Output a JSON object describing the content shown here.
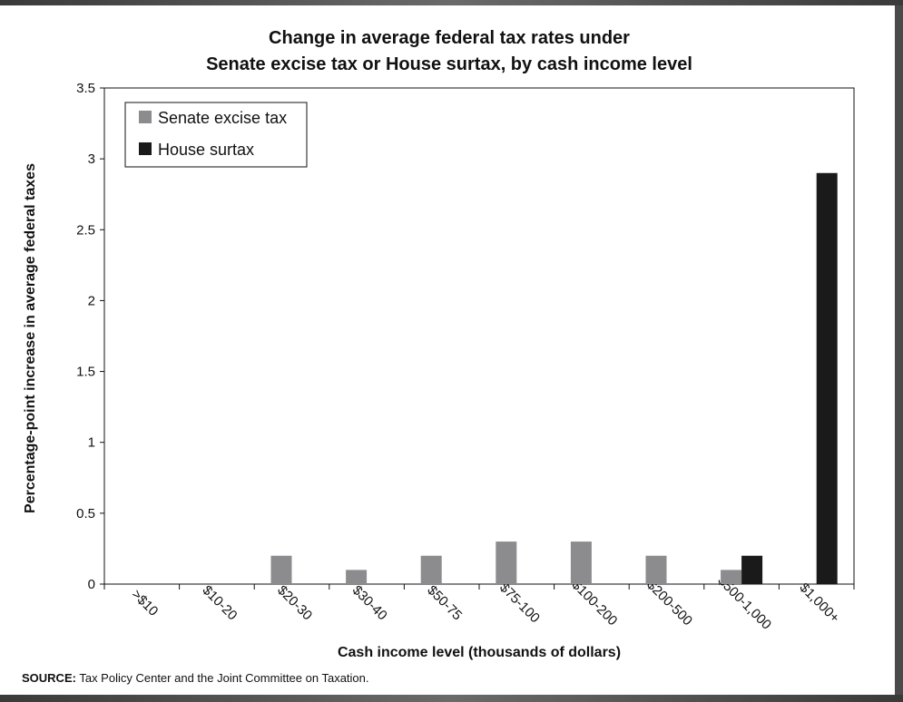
{
  "chart_data": {
    "type": "bar",
    "title": [
      "Change in average federal tax rates under",
      "Senate excise tax or House surtax, by cash income level"
    ],
    "xlabel": "Cash income level (thousands of dollars)",
    "ylabel": "Percentage-point increase in average federal taxes",
    "categories": [
      ">$10",
      "$10-20",
      "$20-30",
      "$30-40",
      "$50-75",
      "$75-100",
      "$100-200",
      "$200-500",
      "$500-1,000",
      "$1,000+"
    ],
    "ylim": [
      0,
      3.5
    ],
    "yticks": [
      "0",
      "0.5",
      "1",
      "1.5",
      "2",
      "2.5",
      "3",
      "3.5"
    ],
    "grid": false,
    "legend_position": "top-left",
    "series": [
      {
        "name": "Senate excise tax",
        "color": "#8c8c8e",
        "values": [
          0,
          0,
          0.2,
          0.1,
          0.2,
          0.3,
          0.3,
          0.2,
          0.1,
          0
        ]
      },
      {
        "name": "House surtax",
        "color": "#1a1a1a",
        "values": [
          0,
          0,
          0,
          0,
          0,
          0,
          0,
          0,
          0.2,
          2.9
        ]
      }
    ]
  },
  "source": {
    "label": "SOURCE:",
    "text": "Tax Policy Center and the Joint Committee on Taxation."
  }
}
